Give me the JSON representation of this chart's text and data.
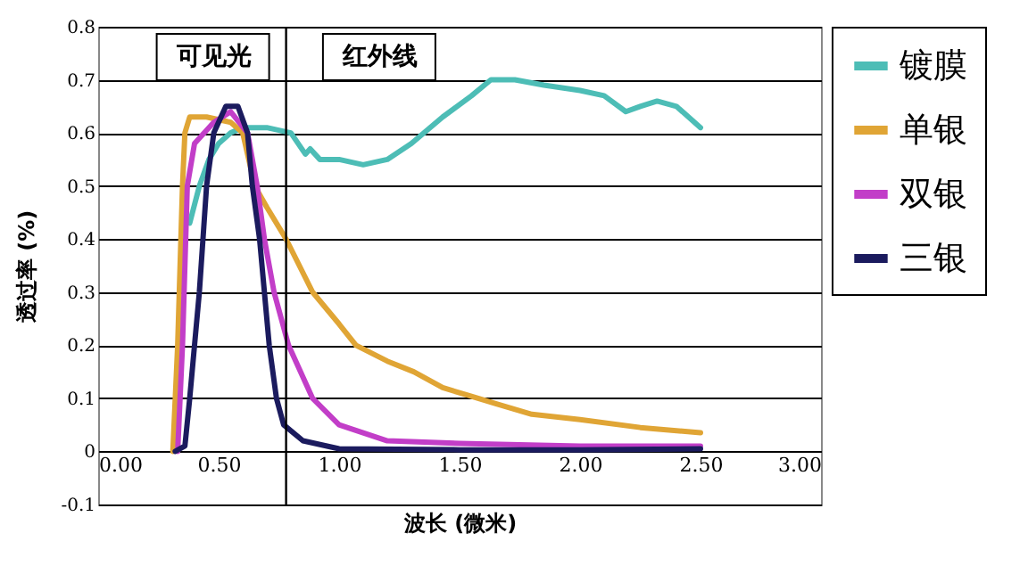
{
  "chart_data": {
    "type": "line",
    "xlabel": "波长 (微米)",
    "ylabel": "透过率 (%)",
    "xlim": [
      0,
      3
    ],
    "xticks": [
      {
        "value": 0,
        "label": "0.00"
      },
      {
        "value": 0.5,
        "label": "0.50"
      },
      {
        "value": 1,
        "label": "1.00"
      },
      {
        "value": 1.5,
        "label": "1.50"
      },
      {
        "value": 2,
        "label": "2.00"
      },
      {
        "value": 2.5,
        "label": "2.50"
      },
      {
        "value": 3,
        "label": "3.00"
      }
    ],
    "ylim": [
      -0.1,
      0.8
    ],
    "yticks": [
      -0.1,
      0,
      0.1,
      0.2,
      0.3,
      0.4,
      0.5,
      0.6,
      0.7,
      0.8
    ],
    "grid": "y",
    "legend": "right",
    "marker": "none",
    "line_style": "solid",
    "ref_lines": [
      {
        "axis": "x",
        "value": 0.78,
        "color": "#000000"
      }
    ],
    "annotations": [
      "可见光",
      "红外线"
    ],
    "series": [
      {
        "name": "镀膜",
        "color": "#4dbdb6",
        "x": [
          0.38,
          0.42,
          0.46,
          0.5,
          0.55,
          0.6,
          0.7,
          0.8,
          0.86,
          0.88,
          0.92,
          1.0,
          1.1,
          1.2,
          1.3,
          1.43,
          1.55,
          1.63,
          1.73,
          1.85,
          2.0,
          2.1,
          2.19,
          2.25,
          2.32,
          2.4,
          2.5
        ],
        "values": [
          0.43,
          0.5,
          0.55,
          0.58,
          0.6,
          0.61,
          0.61,
          0.6,
          0.56,
          0.57,
          0.55,
          0.55,
          0.54,
          0.55,
          0.58,
          0.63,
          0.67,
          0.7,
          0.7,
          0.69,
          0.68,
          0.67,
          0.64,
          0.65,
          0.66,
          0.65,
          0.61
        ]
      },
      {
        "name": "单银",
        "color": "#e0a535",
        "x": [
          0.31,
          0.33,
          0.35,
          0.36,
          0.38,
          0.45,
          0.5,
          0.55,
          0.6,
          0.65,
          0.7,
          0.78,
          0.89,
          1.0,
          1.07,
          1.2,
          1.31,
          1.43,
          1.54,
          1.65,
          1.8,
          2.0,
          2.25,
          2.5
        ],
        "values": [
          0,
          0.2,
          0.5,
          0.6,
          0.63,
          0.63,
          0.625,
          0.62,
          0.6,
          0.5,
          0.46,
          0.4,
          0.3,
          0.24,
          0.2,
          0.17,
          0.15,
          0.12,
          0.105,
          0.09,
          0.07,
          0.06,
          0.045,
          0.035
        ]
      },
      {
        "name": "双银",
        "color": "#c23ec8",
        "x": [
          0.33,
          0.35,
          0.37,
          0.4,
          0.48,
          0.55,
          0.62,
          0.66,
          0.69,
          0.73,
          0.79,
          0.89,
          1.0,
          1.2,
          1.5,
          2.0,
          2.5
        ],
        "values": [
          0,
          0.2,
          0.5,
          0.58,
          0.62,
          0.64,
          0.6,
          0.5,
          0.4,
          0.3,
          0.2,
          0.1,
          0.05,
          0.02,
          0.015,
          0.01,
          0.01
        ]
      },
      {
        "name": "三银",
        "color": "#1b1b5e",
        "x": [
          0.32,
          0.36,
          0.38,
          0.4,
          0.42,
          0.45,
          0.48,
          0.53,
          0.58,
          0.62,
          0.64,
          0.67,
          0.69,
          0.71,
          0.74,
          0.77,
          0.85,
          1.0,
          1.5,
          2.0,
          2.5
        ],
        "values": [
          0,
          0.01,
          0.1,
          0.2,
          0.3,
          0.5,
          0.6,
          0.65,
          0.65,
          0.6,
          0.5,
          0.4,
          0.3,
          0.2,
          0.1,
          0.05,
          0.02,
          0.005,
          0.003,
          0.003,
          0.005
        ]
      }
    ]
  }
}
